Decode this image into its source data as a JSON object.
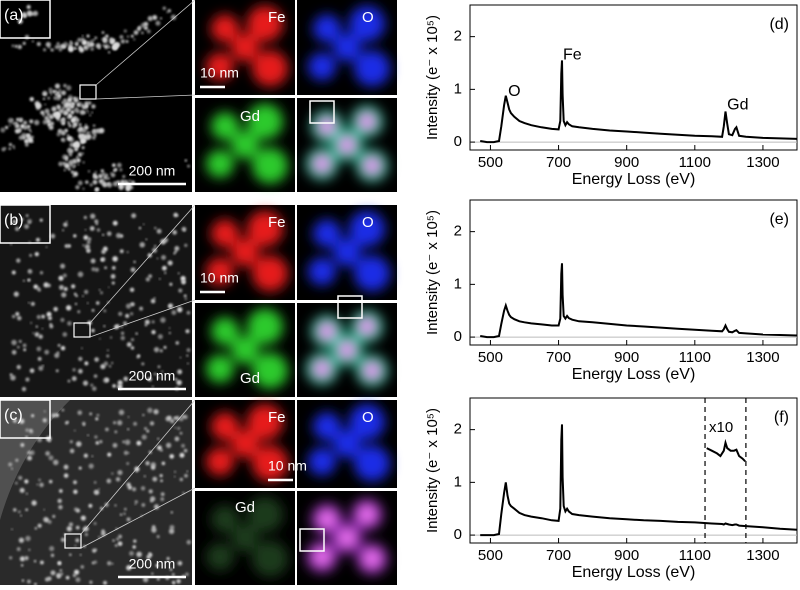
{
  "panels": [
    {
      "label": "(a)",
      "maps": [
        "Fe",
        "O",
        "Gd"
      ],
      "scale_small": "10 nm",
      "scale_large": "200 nm"
    },
    {
      "label": "(b)",
      "maps": [
        "Fe",
        "O",
        "Gd"
      ],
      "scale_small": "10 nm",
      "scale_large": "200 nm"
    },
    {
      "label": "(c)",
      "maps": [
        "Fe",
        "O",
        "Gd"
      ],
      "scale_small": "10 nm",
      "scale_large": "200 nm"
    }
  ],
  "chart_data": [
    {
      "type": "line",
      "title": "(d)",
      "x_label": "Energy Loss (eV)",
      "y_label": "Intensity (e⁻ x 10⁵)",
      "color": "#000000",
      "xlim": [
        440,
        1400
      ],
      "ylim": [
        -0.15,
        2.6
      ],
      "xticks": [
        500,
        700,
        900,
        1100,
        1300
      ],
      "yticks": [
        0,
        1,
        2
      ],
      "annotations": [
        "O",
        "Fe",
        "Gd"
      ],
      "x": [
        470,
        490,
        510,
        525,
        532,
        540,
        545,
        550,
        555,
        560,
        570,
        585,
        600,
        620,
        650,
        680,
        700,
        705,
        708,
        710,
        712,
        715,
        720,
        725,
        730,
        740,
        760,
        800,
        850,
        900,
        950,
        1000,
        1050,
        1100,
        1150,
        1180,
        1185,
        1190,
        1195,
        1200,
        1210,
        1218,
        1222,
        1230,
        1250,
        1300,
        1350,
        1400
      ],
      "values": [
        0.02,
        0.0,
        0.0,
        0.02,
        0.3,
        0.7,
        0.88,
        0.75,
        0.62,
        0.55,
        0.48,
        0.4,
        0.36,
        0.32,
        0.28,
        0.25,
        0.24,
        0.4,
        1.3,
        1.55,
        0.9,
        0.4,
        0.32,
        0.38,
        0.34,
        0.3,
        0.28,
        0.25,
        0.22,
        0.2,
        0.18,
        0.16,
        0.14,
        0.12,
        0.11,
        0.1,
        0.3,
        0.58,
        0.35,
        0.15,
        0.13,
        0.25,
        0.28,
        0.12,
        0.1,
        0.08,
        0.07,
        0.06
      ]
    },
    {
      "type": "line",
      "title": "(e)",
      "x_label": "Energy Loss (eV)",
      "y_label": "Intensity (e⁻ x 10⁵)",
      "color": "#000000",
      "xlim": [
        440,
        1400
      ],
      "ylim": [
        -0.15,
        2.6
      ],
      "xticks": [
        500,
        700,
        900,
        1100,
        1300
      ],
      "yticks": [
        0,
        1,
        2
      ],
      "x": [
        470,
        490,
        510,
        525,
        532,
        540,
        545,
        550,
        555,
        560,
        570,
        585,
        600,
        620,
        650,
        680,
        700,
        705,
        708,
        710,
        712,
        715,
        720,
        725,
        730,
        740,
        760,
        800,
        850,
        900,
        950,
        1000,
        1050,
        1100,
        1150,
        1180,
        1185,
        1190,
        1195,
        1200,
        1210,
        1218,
        1222,
        1230,
        1250,
        1300,
        1350,
        1400
      ],
      "values": [
        0.02,
        0.0,
        0.0,
        0.02,
        0.25,
        0.5,
        0.6,
        0.5,
        0.42,
        0.38,
        0.34,
        0.3,
        0.28,
        0.26,
        0.24,
        0.22,
        0.22,
        0.35,
        1.2,
        1.4,
        0.8,
        0.4,
        0.35,
        0.4,
        0.36,
        0.33,
        0.3,
        0.28,
        0.25,
        0.22,
        0.2,
        0.18,
        0.16,
        0.14,
        0.12,
        0.11,
        0.15,
        0.22,
        0.15,
        0.1,
        0.09,
        0.12,
        0.13,
        0.08,
        0.07,
        0.05,
        0.04,
        0.03
      ]
    },
    {
      "type": "line",
      "title": "(f)",
      "x_label": "Energy Loss (eV)",
      "y_label": "Intensity (e⁻ x 10⁵)",
      "color": "#000000",
      "xlim": [
        440,
        1400
      ],
      "ylim": [
        -0.15,
        2.6
      ],
      "xticks": [
        500,
        700,
        900,
        1100,
        1300
      ],
      "yticks": [
        0,
        1,
        2
      ],
      "x": [
        470,
        490,
        510,
        525,
        532,
        540,
        545,
        550,
        555,
        560,
        570,
        585,
        600,
        620,
        650,
        680,
        700,
        705,
        708,
        710,
        712,
        715,
        720,
        725,
        730,
        740,
        760,
        800,
        850,
        900,
        950,
        1000,
        1050,
        1100,
        1150,
        1180,
        1185,
        1190,
        1195,
        1200,
        1210,
        1218,
        1222,
        1230,
        1250,
        1300,
        1350,
        1400
      ],
      "values": [
        0.0,
        0.0,
        0.0,
        0.02,
        0.4,
        0.8,
        1.0,
        0.75,
        0.6,
        0.55,
        0.5,
        0.42,
        0.38,
        0.35,
        0.32,
        0.28,
        0.27,
        0.5,
        1.8,
        2.1,
        1.1,
        0.55,
        0.45,
        0.5,
        0.45,
        0.4,
        0.38,
        0.35,
        0.32,
        0.3,
        0.28,
        0.27,
        0.25,
        0.24,
        0.22,
        0.21,
        0.2,
        0.22,
        0.21,
        0.2,
        0.19,
        0.2,
        0.2,
        0.18,
        0.17,
        0.15,
        0.12,
        0.1
      ],
      "vlines": [
        1130,
        1250
      ],
      "inset": {
        "label": "x10",
        "x": [
          1135,
          1150,
          1165,
          1175,
          1185,
          1190,
          1195,
          1205,
          1215,
          1222,
          1230,
          1240,
          1248
        ],
        "values": [
          1.65,
          1.6,
          1.55,
          1.5,
          1.6,
          1.75,
          1.65,
          1.6,
          1.6,
          1.62,
          1.5,
          1.45,
          1.4
        ]
      }
    }
  ]
}
